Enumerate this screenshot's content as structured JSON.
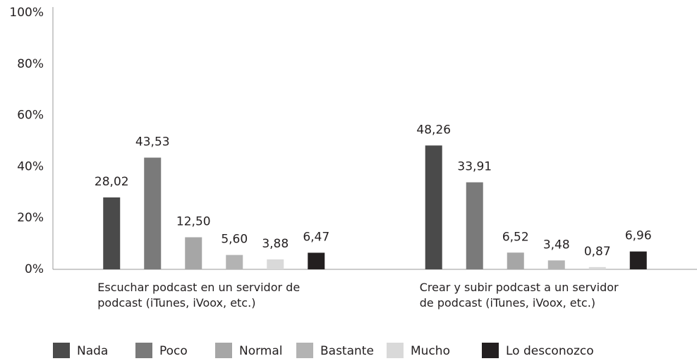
{
  "chart_data": {
    "type": "bar",
    "categories": [
      "Escuchar podcast en un servidor de podcast (iTunes, iVoox, etc.)",
      "Crear y subir podcast a un servidor de podcast (iTunes, iVoox, etc.)"
    ],
    "series": [
      {
        "name": "Nada",
        "color": "#4a4a4a",
        "values": [
          28.02,
          48.26
        ],
        "value_labels": [
          "28,02",
          "48,26"
        ]
      },
      {
        "name": "Poco",
        "color": "#7a7a7a",
        "values": [
          43.53,
          33.91
        ],
        "value_labels": [
          "43,53",
          "33,91"
        ]
      },
      {
        "name": "Normal",
        "color": "#a6a6a6",
        "values": [
          12.5,
          6.52
        ],
        "value_labels": [
          "12,50",
          "6,52"
        ]
      },
      {
        "name": "Bastante",
        "color": "#b3b3b3",
        "values": [
          5.6,
          3.48
        ],
        "value_labels": [
          "5,60",
          "3,48"
        ]
      },
      {
        "name": "Mucho",
        "color": "#d9d9d9",
        "values": [
          3.88,
          0.87
        ],
        "value_labels": [
          "3,88",
          "0,87"
        ]
      },
      {
        "name": "Lo desconozco",
        "color": "#231f20",
        "values": [
          6.47,
          6.96
        ],
        "value_labels": [
          "6,47",
          "6,96"
        ]
      }
    ],
    "ylim": [
      0,
      100
    ],
    "yticks": [
      {
        "value": 0,
        "label": "0%"
      },
      {
        "value": 20,
        "label": "20%"
      },
      {
        "value": 40,
        "label": "40%"
      },
      {
        "value": 60,
        "label": "60%"
      },
      {
        "value": 80,
        "label": "80%"
      },
      {
        "value": 100,
        "label": "100%"
      }
    ],
    "grid": false,
    "legend": "bottom"
  }
}
